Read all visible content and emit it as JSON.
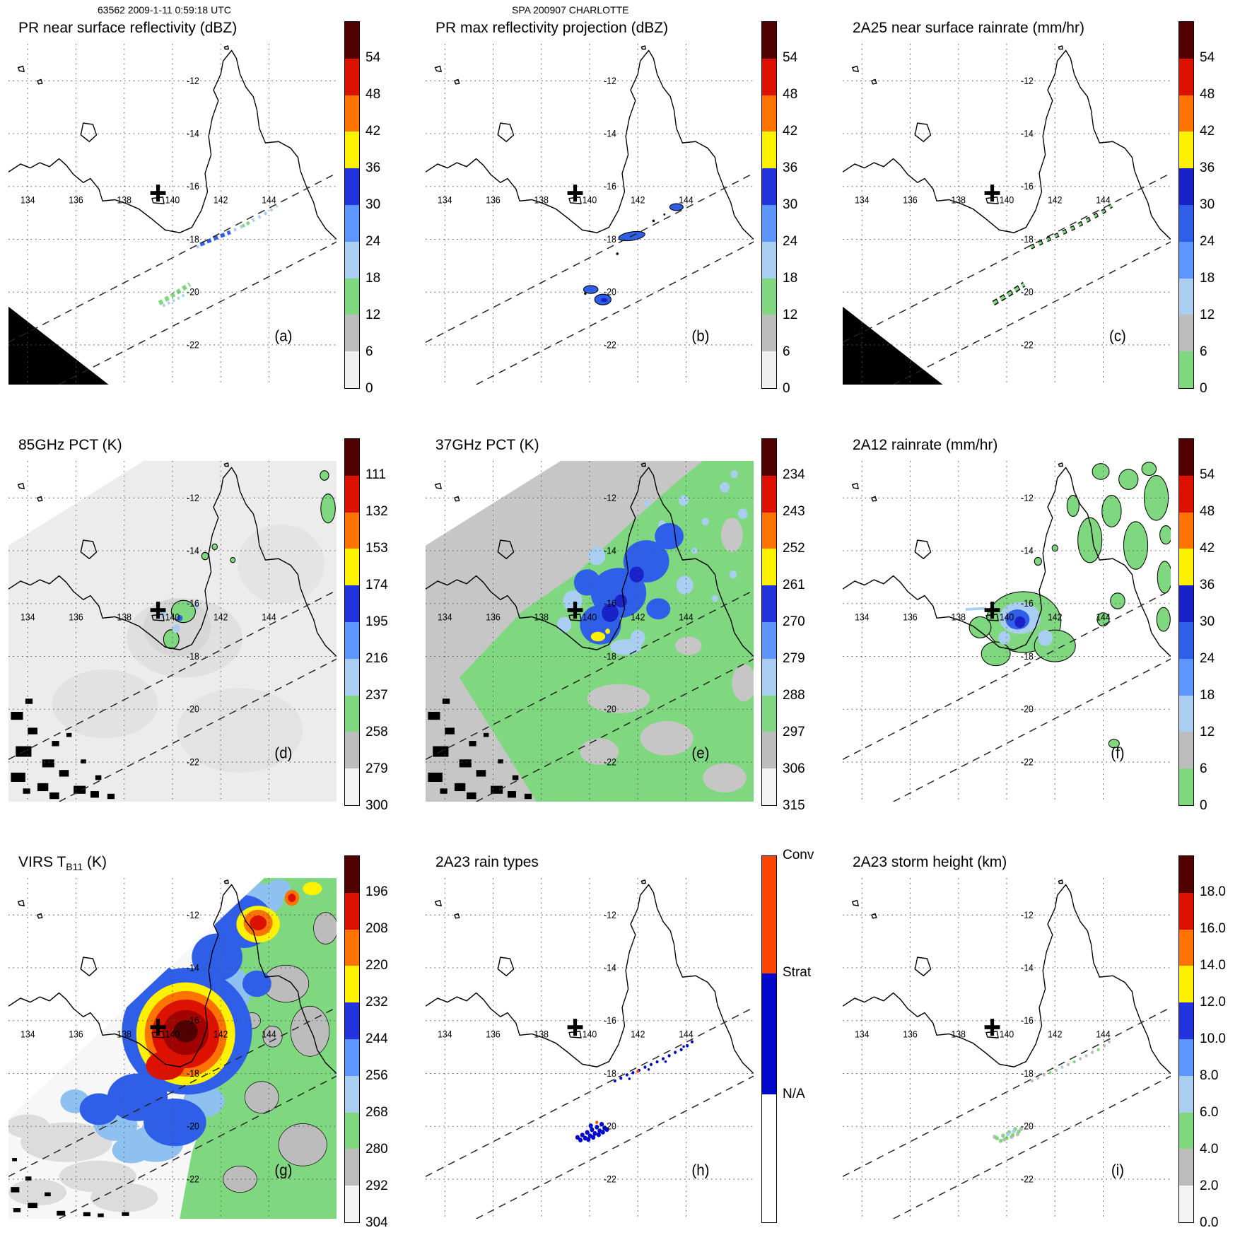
{
  "header": {
    "left": "63562 2009-1-11 0:59:18 UTC",
    "center": "SPA 200907 CHARLOTTE"
  },
  "map": {
    "lon_labels": [
      "134",
      "136",
      "138",
      "140",
      "142",
      "144"
    ],
    "lat_labels": [
      "-12",
      "-14",
      "-16",
      "-18",
      "-20",
      "-22"
    ],
    "marker": {
      "name": "site-cross",
      "lon": 139.4,
      "lat": -16.25
    }
  },
  "panels": [
    {
      "id": "a",
      "letter": "(a)",
      "title": "PR near surface reflectivity (dBZ)",
      "colorbar": {
        "ticks": [
          "54",
          "48",
          "42",
          "36",
          "30",
          "24",
          "18",
          "12",
          "6",
          "0"
        ],
        "colors": [
          "#500000",
          "#dd1100",
          "#ff7300",
          "#fff200",
          "#2233dd",
          "#5d96ff",
          "#aacdf2",
          "#7fd87f",
          "#bdbdbd",
          "#f0f0f0"
        ]
      }
    },
    {
      "id": "b",
      "letter": "(b)",
      "title": "PR max reflectivity projection (dBZ)",
      "colorbar": {
        "ticks": [
          "54",
          "48",
          "42",
          "36",
          "30",
          "24",
          "18",
          "12",
          "6",
          "0"
        ],
        "colors": [
          "#500000",
          "#dd1100",
          "#ff7300",
          "#fff200",
          "#2233dd",
          "#5d96ff",
          "#aacdf2",
          "#7fd87f",
          "#bdbdbd",
          "#f0f0f0"
        ]
      }
    },
    {
      "id": "c",
      "letter": "(c)",
      "title": "2A25 near surface rainrate (mm/hr)",
      "colorbar": {
        "ticks": [
          "54",
          "48",
          "42",
          "36",
          "30",
          "24",
          "18",
          "12",
          "6",
          "0"
        ],
        "colors": [
          "#500000",
          "#dd1100",
          "#ff7300",
          "#fff200",
          "#1822c8",
          "#2f5fe8",
          "#5d96ff",
          "#aacdf2",
          "#bdbdbd",
          "#7fd87f"
        ]
      }
    },
    {
      "id": "d",
      "letter": "(d)",
      "title": "85GHz PCT (K)",
      "colorbar": {
        "ticks": [
          "111",
          "132",
          "153",
          "174",
          "195",
          "216",
          "237",
          "258",
          "279",
          "300"
        ],
        "colors": [
          "#500000",
          "#dd1100",
          "#ff7300",
          "#fff200",
          "#2233dd",
          "#5d96ff",
          "#aacdf2",
          "#7fd87f",
          "#bdbdbd",
          "#f4f4f4"
        ]
      }
    },
    {
      "id": "e",
      "letter": "(e)",
      "title": "37GHz PCT (K)",
      "colorbar": {
        "ticks": [
          "234",
          "243",
          "252",
          "261",
          "270",
          "279",
          "288",
          "297",
          "306",
          "315"
        ],
        "colors": [
          "#500000",
          "#dd1100",
          "#ff7300",
          "#fff200",
          "#2233dd",
          "#5d96ff",
          "#aacdf2",
          "#7fd87f",
          "#bdbdbd",
          "#f4f4f4"
        ]
      }
    },
    {
      "id": "f",
      "letter": "(f)",
      "title": "2A12 rainrate (mm/hr)",
      "colorbar": {
        "ticks": [
          "54",
          "48",
          "42",
          "36",
          "30",
          "24",
          "18",
          "12",
          "6",
          "0"
        ],
        "colors": [
          "#500000",
          "#dd1100",
          "#ff7300",
          "#fff200",
          "#1822c8",
          "#2f5fe8",
          "#5d96ff",
          "#aacdf2",
          "#bdbdbd",
          "#7fd87f"
        ]
      }
    },
    {
      "id": "g",
      "letter": "(g)",
      "title_pre": "VIRS T",
      "title_sub": "B11",
      "title_post": " (K)",
      "colorbar": {
        "ticks": [
          "196",
          "208",
          "220",
          "232",
          "244",
          "256",
          "268",
          "280",
          "292",
          "304"
        ],
        "colors": [
          "#500000",
          "#dd1100",
          "#ff7300",
          "#fff200",
          "#2233dd",
          "#5d96ff",
          "#aacdf2",
          "#7fd87f",
          "#bdbdbd",
          "#f4f4f4"
        ]
      }
    },
    {
      "id": "h",
      "letter": "(h)",
      "title": "2A23 rain types",
      "colorbar": {
        "categories": [
          {
            "label": "Conv",
            "color": "#ff4400",
            "frac": 0.32
          },
          {
            "label": "Strat",
            "color": "#0008cc",
            "frac": 0.33
          },
          {
            "label": "N/A",
            "color": "#ffffff",
            "frac": 0.35
          }
        ]
      }
    },
    {
      "id": "i",
      "letter": "(i)",
      "title": "2A23 storm height (km)",
      "colorbar": {
        "ticks": [
          "18.0",
          "16.0",
          "14.0",
          "12.0",
          "10.0",
          "8.0",
          "6.0",
          "4.0",
          "2.0",
          "0.0"
        ],
        "colors": [
          "#500000",
          "#dd1100",
          "#ff7300",
          "#fff200",
          "#2233dd",
          "#5d96ff",
          "#aacdf2",
          "#7fd87f",
          "#bdbdbd",
          "#f4f4f4"
        ]
      }
    }
  ],
  "chart_data": {
    "type": "heatmap",
    "title": "TRMM orbit 63562, 2009-1-11 0:59:18 UTC, SPA 200907 CHARLOTTE",
    "layout": "3x3 grid of longitude/latitude map panels over the Gulf of Carpentaria / Cape York Peninsula, each with a discrete vertical colorbar; dotted lat/lon graticule; two dashed NE-SW lines mark the PR swath edges; bold cross marks the site near 139.4E 16.25S",
    "geo": {
      "lon_range": [
        133.2,
        146.8
      ],
      "lat_range": [
        -23.5,
        -10.6
      ],
      "lon_gridlines": [
        134,
        136,
        138,
        140,
        142,
        144
      ],
      "lat_gridlines": [
        -12,
        -14,
        -16,
        -18,
        -20,
        -22
      ],
      "site_marker_lonlat": [
        139.4,
        -16.25
      ]
    },
    "panels": [
      {
        "label": "(a)",
        "title": "PR near surface reflectivity (dBZ)",
        "units": "dBZ",
        "colorbar_ticks": [
          54,
          48,
          42,
          36,
          30,
          24,
          18,
          12,
          6,
          0
        ],
        "features": "Narrow NE-SW band of 12-35 dBZ echoes near 141-144.3E / 16.7-18.3S; second echo cluster near 139.4-140.7E / 19.7-20.5S; solid black no-data triangle in SW corner"
      },
      {
        "label": "(b)",
        "title": "PR max reflectivity projection (dBZ)",
        "units": "dBZ",
        "colorbar_ticks": [
          54,
          48,
          42,
          36,
          30,
          24,
          18,
          12,
          6,
          0
        ],
        "features": "Compact black-outlined 24-36 dBZ cells near 143.6E/16.8S, 141.3-142.2E/17.9S and 140-140.9E/19.8-20.4S"
      },
      {
        "label": "(c)",
        "title": "2A25 near surface rainrate (mm/hr)",
        "units": "mm/hr",
        "colorbar_ticks": [
          54,
          48,
          42,
          36,
          30,
          24,
          18,
          12,
          6,
          0
        ],
        "features": "Light rain (0-6 mm/hr, green) streaks at the same locations as panel (a); black no-data triangle in SW corner"
      },
      {
        "label": "(d)",
        "title": "85GHz PCT (K)",
        "units": "K",
        "colorbar_ticks": [
          111,
          132,
          153,
          174,
          195,
          216,
          237,
          258,
          279,
          300
        ],
        "features": "Wide TMI swath mostly 258-300 K (gray/white); ice-scattering depressions 216-258 K (green/blue) near 139.5-141E / 16-17.5S and small spots near the east coast; black surface speckle in SW part of swath"
      },
      {
        "label": "(e)",
        "title": "37GHz PCT (K)",
        "units": "K",
        "colorbar_ticks": [
          234,
          243,
          252,
          261,
          270,
          279,
          288,
          297,
          306,
          315
        ],
        "features": "288-297 K (green) over NE half of swath; 261-279 K (blue) region 139.5-143.5E / 13-17.5S with 252-261 K (yellow) minimum near 140.4E/17.2S; 297-306 K (gray) SW half with black speckle"
      },
      {
        "label": "(f)",
        "title": "2A12 rainrate (mm/hr)",
        "units": "mm/hr",
        "colorbar_ticks": [
          54,
          48,
          42,
          36,
          30,
          24,
          18,
          12,
          6,
          0
        ],
        "features": "Black-outlined light-rain (0-6 mm/hr) areas around 139-142.5E / 15.5-18.5S and scattered along the east coast 142.5-146.8E / 10.6-16.5S; 12-30 mm/hr blue core near 140.5E/16.6S"
      },
      {
        "label": "(g)",
        "title": "VIRS TB11 (K)",
        "units": "K",
        "colorbar_ticks": [
          196,
          208,
          220,
          232,
          244,
          256,
          268,
          280,
          292,
          304
        ],
        "features": "Cold cloud shield below 208 K (red/dark red) centered near 140.5E/16.5S ringed by 220-256 K (orange, yellow, blue); secondary cold spot near 143.5E/12.3S; 268-304 K (green/gray/white) elsewhere in VIRS swath"
      },
      {
        "label": "(h)",
        "title": "2A23 rain types",
        "units": "category",
        "categories": [
          "Conv",
          "Strat",
          "N/A"
        ],
        "features": "Mostly stratiform (blue) pixels along the two PR rain streaks; a few isolated convective (orange-red) pixels near 140.3E/19.9S and 142E/17.9S"
      },
      {
        "label": "(i)",
        "title": "2A23 storm height (km)",
        "units": "km",
        "colorbar_ticks": [
          18.0,
          16.0,
          14.0,
          12.0,
          10.0,
          8.0,
          6.0,
          4.0,
          2.0,
          0.0
        ],
        "features": "Storm heights mostly 2-6 km (gray/green) along the two PR rain streaks"
      }
    ]
  }
}
